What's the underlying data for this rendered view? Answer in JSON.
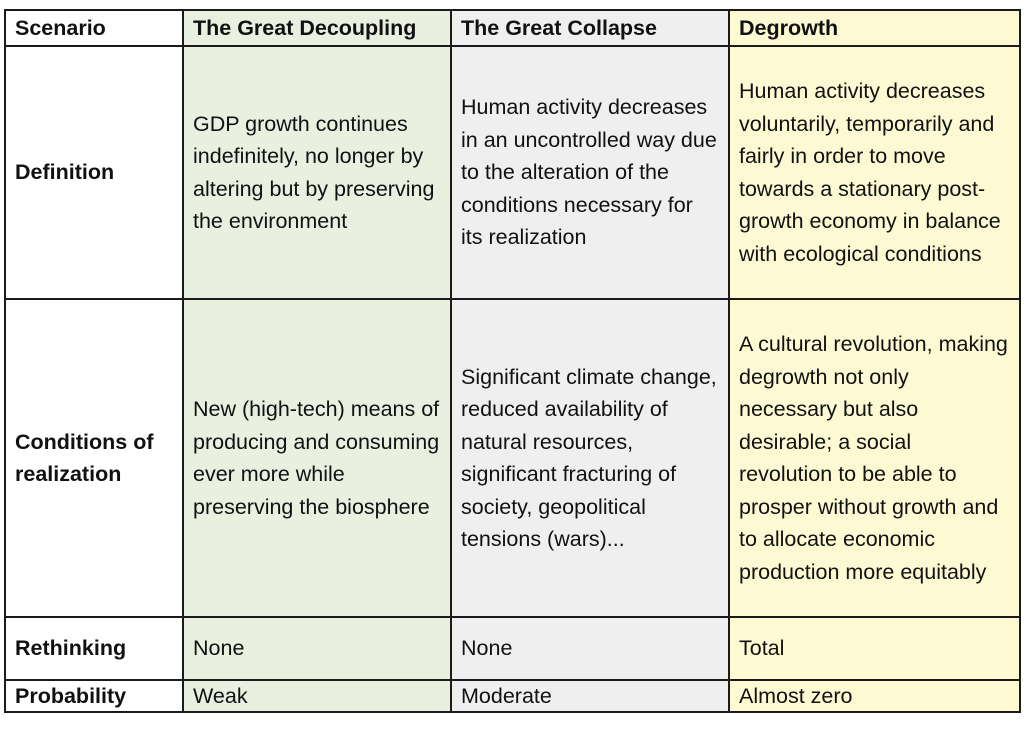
{
  "table": {
    "header": {
      "label": "Scenario",
      "columns": [
        "The Great Decoupling",
        "The Great Collapse",
        "Degrowth"
      ]
    },
    "rows": [
      {
        "label": "Definition",
        "cells": [
          "GDP growth continues indefinitely, no longer by altering but by preserving the environment",
          "Human activity decreases in an uncontrolled way due to the alteration of the conditions necessary for its realization",
          "Human activity decreases voluntarily, temporarily and fairly in order to move towards a stationary post-growth economy in balance with ecological conditions"
        ]
      },
      {
        "label": "Conditions of realization",
        "cells": [
          "New (high-tech) means of producing and consuming ever more while preserving the biosphere",
          "Significant climate change, reduced availability of natural resources, significant fracturing of society, geopolitical tensions (wars)...",
          "A cultural revolution, making degrowth not only necessary but also desirable; a social revolution to be able to prosper without growth and to allocate economic production more equitably"
        ]
      },
      {
        "label": "Rethinking",
        "cells": [
          "None",
          "None",
          "Total"
        ]
      },
      {
        "label": "Probability",
        "cells": [
          "Weak",
          "Moderate",
          "Almost zero"
        ]
      }
    ]
  },
  "colors": {
    "decoupling_column": "#e9f0e0",
    "collapse_column": "#efefef",
    "degrowth_column": "#fdfad3",
    "border": "#1a1a1a"
  }
}
